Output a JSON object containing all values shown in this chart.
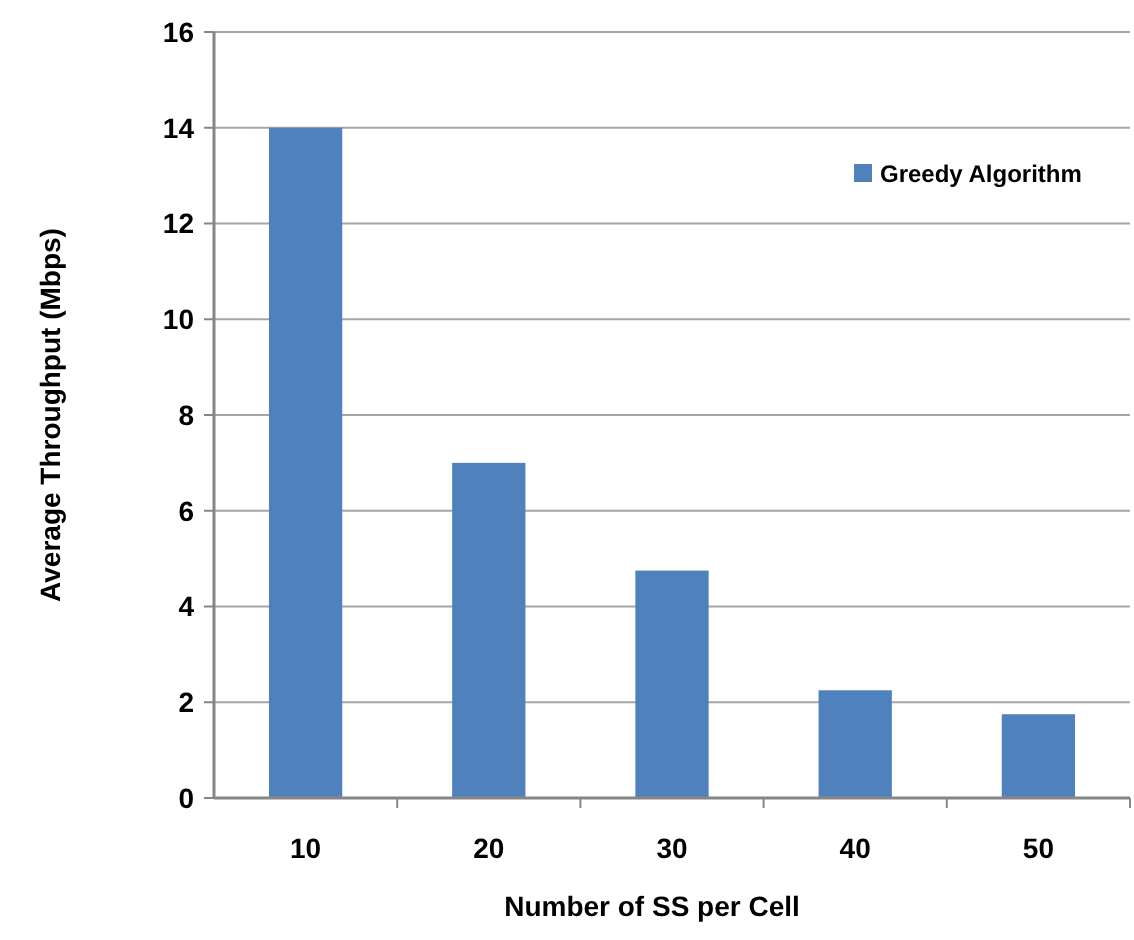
{
  "chart_data": {
    "type": "bar",
    "xlabel": "Number of SS per Cell",
    "ylabel": "Average Throughput (Mbps)",
    "categories": [
      "10",
      "20",
      "30",
      "40",
      "50"
    ],
    "series": [
      {
        "name": "Greedy Algorithm",
        "color": "#4f81bd",
        "values": [
          14,
          7,
          4.75,
          2.25,
          1.75
        ]
      }
    ],
    "ylim": [
      0,
      16
    ],
    "yticks": [
      0,
      2,
      4,
      6,
      8,
      10,
      12,
      14,
      16
    ],
    "grid": "y",
    "legend": "top right"
  }
}
